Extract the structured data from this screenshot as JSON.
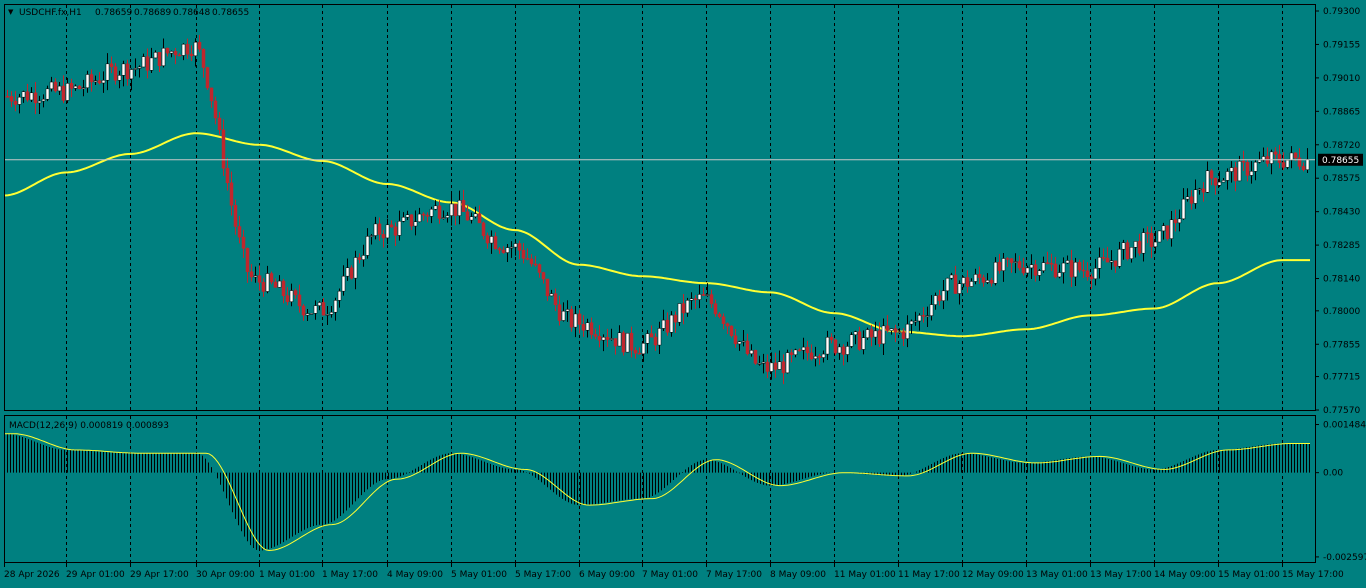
{
  "header": {
    "symbol_label": "USDCHF.fx,H1",
    "ohlc": [
      "0.78659",
      "0.78689",
      "0.78648",
      "0.78655"
    ]
  },
  "colors": {
    "background": "#008080",
    "bull": "#ffffff",
    "bear": "#c0272d",
    "ma": "#ffff33",
    "macd_signal": "#ffff33",
    "macd_hist": "#000000",
    "grid": "#000000",
    "bid_line": "#c8c8c8",
    "price_tag": "#000000"
  },
  "chart_data": [
    {
      "type": "candlestick",
      "symbol": "USDCHF.fx",
      "timeframe": "H1",
      "ylim": [
        0.7757,
        0.793
      ],
      "y_ticks": [
        "0.79300",
        "0.79155",
        "0.79010",
        "0.78865",
        "0.78720",
        "0.78575",
        "0.78430",
        "0.78285",
        "0.78140",
        "0.78000",
        "0.77855",
        "0.77715",
        "0.77570"
      ],
      "x_ticks": [
        "28 Apr 2026",
        "29 Apr 01:00",
        "29 Apr 17:00",
        "30 Apr 09:00",
        "1 May 01:00",
        "1 May 17:00",
        "4 May 09:00",
        "5 May 01:00",
        "5 May 17:00",
        "6 May 09:00",
        "7 May 01:00",
        "7 May 17:00",
        "8 May 09:00",
        "11 May 01:00",
        "11 May 17:00",
        "12 May 09:00",
        "13 May 01:00",
        "13 May 17:00",
        "14 May 09:00",
        "15 May 01:00",
        "15 May 17:00"
      ],
      "current_price": "0.78655",
      "grid": "vertical dashed",
      "close_path": [
        {
          "label": "28 Apr 2026",
          "close": 0.7893
        },
        {
          "label": "29 Apr 01:00",
          "close": 0.7895
        },
        {
          "label": "29 Apr 17:00",
          "close": 0.7905
        },
        {
          "label": "30 Apr 09:00",
          "close": 0.7915
        },
        {
          "label": "1 May 01:00",
          "close": 0.7813
        },
        {
          "label": "1 May 17:00",
          "close": 0.78
        },
        {
          "label": "4 May 09:00",
          "close": 0.7835
        },
        {
          "label": "5 May 01:00",
          "close": 0.7845
        },
        {
          "label": "5 May 17:00",
          "close": 0.7828
        },
        {
          "label": "6 May 09:00",
          "close": 0.7795
        },
        {
          "label": "7 May 01:00",
          "close": 0.7785
        },
        {
          "label": "7 May 17:00",
          "close": 0.7805
        },
        {
          "label": "8 May 09:00",
          "close": 0.7775
        },
        {
          "label": "11 May 01:00",
          "close": 0.7785
        },
        {
          "label": "11 May 17:00",
          "close": 0.779
        },
        {
          "label": "12 May 09:00",
          "close": 0.7812
        },
        {
          "label": "13 May 01:00",
          "close": 0.782
        },
        {
          "label": "13 May 17:00",
          "close": 0.7818
        },
        {
          "label": "14 May 09:00",
          "close": 0.783
        },
        {
          "label": "15 May 01:00",
          "close": 0.7858
        },
        {
          "label": "15 May 17:00",
          "close": 0.78655
        }
      ],
      "ma_path": [
        {
          "label": "28 Apr 2026",
          "value": 0.785
        },
        {
          "label": "29 Apr 01:00",
          "value": 0.786
        },
        {
          "label": "29 Apr 17:00",
          "value": 0.7868
        },
        {
          "label": "30 Apr 09:00",
          "value": 0.7877
        },
        {
          "label": "1 May 01:00",
          "value": 0.7872
        },
        {
          "label": "1 May 17:00",
          "value": 0.7865
        },
        {
          "label": "4 May 09:00",
          "value": 0.7855
        },
        {
          "label": "5 May 01:00",
          "value": 0.7847
        },
        {
          "label": "5 May 17:00",
          "value": 0.7835
        },
        {
          "label": "6 May 09:00",
          "value": 0.782
        },
        {
          "label": "7 May 01:00",
          "value": 0.7815
        },
        {
          "label": "7 May 17:00",
          "value": 0.7812
        },
        {
          "label": "8 May 09:00",
          "value": 0.7808
        },
        {
          "label": "11 May 01:00",
          "value": 0.7799
        },
        {
          "label": "11 May 17:00",
          "value": 0.7791
        },
        {
          "label": "12 May 09:00",
          "value": 0.7789
        },
        {
          "label": "13 May 01:00",
          "value": 0.7792
        },
        {
          "label": "13 May 17:00",
          "value": 0.7798
        },
        {
          "label": "14 May 09:00",
          "value": 0.7801
        },
        {
          "label": "15 May 01:00",
          "value": 0.7812
        },
        {
          "label": "15 May 17:00",
          "value": 0.7822
        }
      ]
    },
    {
      "type": "bar",
      "indicator_label": "MACD(12,26,9) 0.000819 0.000893",
      "ylim": [
        -0.0026,
        0.0015
      ],
      "y_ticks": [
        "0.001484",
        "0.00",
        "-0.002597"
      ],
      "macd_path": [
        {
          "label": "28 Apr 2026",
          "value": 0.0012
        },
        {
          "label": "29 Apr 01:00",
          "value": 0.0007
        },
        {
          "label": "29 Apr 17:00",
          "value": 0.0006
        },
        {
          "label": "30 Apr 09:00",
          "value": 0.0006
        },
        {
          "label": "1 May 01:00",
          "value": -0.0024
        },
        {
          "label": "1 May 17:00",
          "value": -0.0016
        },
        {
          "label": "4 May 09:00",
          "value": -0.0002
        },
        {
          "label": "5 May 01:00",
          "value": 0.0006
        },
        {
          "label": "5 May 17:00",
          "value": 0.0001
        },
        {
          "label": "6 May 09:00",
          "value": -0.001
        },
        {
          "label": "7 May 01:00",
          "value": -0.0008
        },
        {
          "label": "7 May 17:00",
          "value": 0.0004
        },
        {
          "label": "8 May 09:00",
          "value": -0.0004
        },
        {
          "label": "11 May 01:00",
          "value": 0.0
        },
        {
          "label": "11 May 17:00",
          "value": -0.0001
        },
        {
          "label": "12 May 09:00",
          "value": 0.0006
        },
        {
          "label": "13 May 01:00",
          "value": 0.0003
        },
        {
          "label": "13 May 17:00",
          "value": 0.0005
        },
        {
          "label": "14 May 09:00",
          "value": 0.0001
        },
        {
          "label": "15 May 01:00",
          "value": 0.0007
        },
        {
          "label": "15 May 17:00",
          "value": 0.0009
        }
      ]
    }
  ]
}
